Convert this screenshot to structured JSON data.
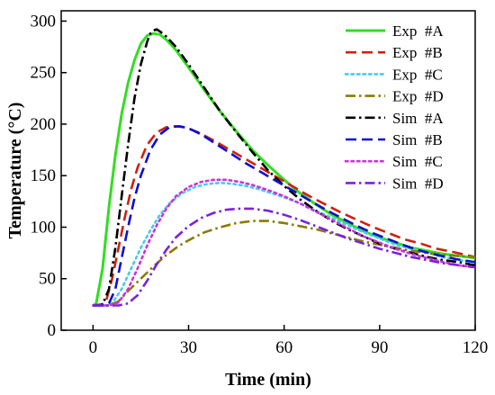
{
  "chart_data": {
    "type": "line",
    "title": "",
    "xlabel": "Time (min)",
    "ylabel": "Temperature (°C)",
    "xlim": [
      -10,
      120
    ],
    "ylim": [
      0,
      310
    ],
    "x_ticks": [
      0,
      30,
      60,
      90,
      120
    ],
    "y_ticks": [
      0,
      50,
      100,
      150,
      200,
      250,
      300
    ],
    "grid": false,
    "legend_position": "top-right",
    "series": [
      {
        "name": "Exp  #A",
        "color": "#33dd22",
        "style": "solid",
        "points": [
          [
            0,
            24
          ],
          [
            1,
            26
          ],
          [
            3,
            60
          ],
          [
            5,
            120
          ],
          [
            7,
            170
          ],
          [
            9,
            210
          ],
          [
            11,
            240
          ],
          [
            13,
            262
          ],
          [
            15,
            278
          ],
          [
            17,
            286
          ],
          [
            19,
            288
          ],
          [
            21,
            287
          ],
          [
            23,
            282
          ],
          [
            26,
            272
          ],
          [
            30,
            255
          ],
          [
            35,
            233
          ],
          [
            40,
            212
          ],
          [
            45,
            193
          ],
          [
            50,
            175
          ],
          [
            55,
            160
          ],
          [
            60,
            146
          ],
          [
            65,
            133
          ],
          [
            70,
            122
          ],
          [
            75,
            112
          ],
          [
            80,
            104
          ],
          [
            85,
            96
          ],
          [
            90,
            90
          ],
          [
            95,
            85
          ],
          [
            100,
            80
          ],
          [
            105,
            77
          ],
          [
            110,
            74
          ],
          [
            115,
            72
          ],
          [
            120,
            70
          ]
        ]
      },
      {
        "name": "Exp  #B",
        "color": "#cc2211",
        "style": "dashed",
        "points": [
          [
            0,
            24
          ],
          [
            2,
            24
          ],
          [
            4,
            27
          ],
          [
            6,
            50
          ],
          [
            8,
            80
          ],
          [
            10,
            110
          ],
          [
            12,
            137
          ],
          [
            14,
            158
          ],
          [
            17,
            180
          ],
          [
            20,
            192
          ],
          [
            23,
            197
          ],
          [
            26,
            198
          ],
          [
            29,
            197
          ],
          [
            33,
            192
          ],
          [
            38,
            184
          ],
          [
            43,
            175
          ],
          [
            48,
            166
          ],
          [
            53,
            157
          ],
          [
            58,
            148
          ],
          [
            63,
            139
          ],
          [
            68,
            130
          ],
          [
            73,
            122
          ],
          [
            78,
            114
          ],
          [
            83,
            107
          ],
          [
            88,
            100
          ],
          [
            93,
            94
          ],
          [
            98,
            88
          ],
          [
            103,
            84
          ],
          [
            108,
            79
          ],
          [
            113,
            76
          ],
          [
            120,
            71
          ]
        ]
      },
      {
        "name": "Exp  #C",
        "color": "#44ccee",
        "style": "dotted",
        "points": [
          [
            0,
            24
          ],
          [
            4,
            24
          ],
          [
            6,
            26
          ],
          [
            9,
            40
          ],
          [
            12,
            60
          ],
          [
            15,
            80
          ],
          [
            18,
            97
          ],
          [
            21,
            112
          ],
          [
            24,
            123
          ],
          [
            28,
            133
          ],
          [
            32,
            139
          ],
          [
            36,
            142
          ],
          [
            40,
            143
          ],
          [
            44,
            142
          ],
          [
            48,
            140
          ],
          [
            52,
            137
          ],
          [
            56,
            133
          ],
          [
            60,
            129
          ],
          [
            65,
            123
          ],
          [
            70,
            116
          ],
          [
            75,
            109
          ],
          [
            80,
            102
          ],
          [
            85,
            95
          ],
          [
            90,
            89
          ],
          [
            95,
            83
          ],
          [
            100,
            79
          ],
          [
            105,
            75
          ],
          [
            110,
            71
          ],
          [
            115,
            68
          ],
          [
            120,
            66
          ]
        ]
      },
      {
        "name": "Exp  #D",
        "color": "#8b7a00",
        "style": "dashdot",
        "points": [
          [
            0,
            24
          ],
          [
            5,
            24
          ],
          [
            8,
            28
          ],
          [
            11,
            38
          ],
          [
            15,
            50
          ],
          [
            19,
            62
          ],
          [
            23,
            73
          ],
          [
            27,
            82
          ],
          [
            31,
            89
          ],
          [
            35,
            95
          ],
          [
            40,
            100
          ],
          [
            45,
            104
          ],
          [
            50,
            106
          ],
          [
            55,
            106
          ],
          [
            60,
            104
          ],
          [
            65,
            101
          ],
          [
            70,
            98
          ],
          [
            75,
            94
          ],
          [
            80,
            90
          ],
          [
            85,
            86
          ],
          [
            90,
            83
          ],
          [
            95,
            80
          ],
          [
            100,
            77
          ],
          [
            105,
            75
          ],
          [
            110,
            73
          ],
          [
            115,
            72
          ],
          [
            120,
            71
          ]
        ]
      },
      {
        "name": "Sim  #A",
        "color": "#000000",
        "style": "dashdot",
        "points": [
          [
            0,
            24
          ],
          [
            3,
            25
          ],
          [
            5,
            40
          ],
          [
            7,
            80
          ],
          [
            9,
            130
          ],
          [
            11,
            180
          ],
          [
            13,
            225
          ],
          [
            15,
            258
          ],
          [
            17,
            280
          ],
          [
            18,
            288
          ],
          [
            19,
            291
          ],
          [
            20,
            292
          ],
          [
            21,
            290
          ],
          [
            23,
            285
          ],
          [
            26,
            275
          ],
          [
            30,
            258
          ],
          [
            35,
            235
          ],
          [
            40,
            212
          ],
          [
            45,
            192
          ],
          [
            50,
            173
          ],
          [
            55,
            155
          ],
          [
            60,
            140
          ],
          [
            65,
            127
          ],
          [
            70,
            116
          ],
          [
            75,
            106
          ],
          [
            80,
            98
          ],
          [
            85,
            91
          ],
          [
            90,
            84
          ],
          [
            95,
            79
          ],
          [
            100,
            75
          ],
          [
            105,
            71
          ],
          [
            110,
            68
          ],
          [
            115,
            66
          ],
          [
            120,
            63
          ]
        ]
      },
      {
        "name": "Sim  #B",
        "color": "#0a10d0",
        "style": "dashed",
        "points": [
          [
            0,
            24
          ],
          [
            3,
            24
          ],
          [
            5,
            26
          ],
          [
            7,
            40
          ],
          [
            9,
            70
          ],
          [
            11,
            100
          ],
          [
            13,
            128
          ],
          [
            15,
            150
          ],
          [
            18,
            175
          ],
          [
            21,
            190
          ],
          [
            24,
            197
          ],
          [
            27,
            198
          ],
          [
            30,
            196
          ],
          [
            34,
            190
          ],
          [
            38,
            182
          ],
          [
            43,
            172
          ],
          [
            48,
            162
          ],
          [
            53,
            153
          ],
          [
            58,
            144
          ],
          [
            63,
            135
          ],
          [
            68,
            126
          ],
          [
            73,
            117
          ],
          [
            78,
            109
          ],
          [
            83,
            101
          ],
          [
            88,
            94
          ],
          [
            93,
            88
          ],
          [
            98,
            82
          ],
          [
            103,
            77
          ],
          [
            108,
            73
          ],
          [
            114,
            69
          ],
          [
            120,
            66
          ]
        ]
      },
      {
        "name": "Sim  #C",
        "color": "#cc33dd",
        "style": "dotted",
        "points": [
          [
            0,
            24
          ],
          [
            5,
            24
          ],
          [
            8,
            27
          ],
          [
            11,
            40
          ],
          [
            14,
            60
          ],
          [
            17,
            82
          ],
          [
            20,
            102
          ],
          [
            23,
            118
          ],
          [
            26,
            130
          ],
          [
            30,
            139
          ],
          [
            34,
            144
          ],
          [
            38,
            146
          ],
          [
            42,
            146
          ],
          [
            46,
            144
          ],
          [
            50,
            141
          ],
          [
            55,
            136
          ],
          [
            60,
            130
          ],
          [
            65,
            123
          ],
          [
            70,
            115
          ],
          [
            75,
            107
          ],
          [
            80,
            99
          ],
          [
            85,
            91
          ],
          [
            90,
            85
          ],
          [
            95,
            79
          ],
          [
            100,
            74
          ],
          [
            105,
            70
          ],
          [
            110,
            66
          ],
          [
            115,
            63
          ],
          [
            120,
            61
          ]
        ]
      },
      {
        "name": "Sim  #D",
        "color": "#7a22dd",
        "style": "dashdot",
        "points": [
          [
            0,
            24
          ],
          [
            5,
            24
          ],
          [
            8,
            24
          ],
          [
            11,
            26
          ],
          [
            14,
            34
          ],
          [
            17,
            48
          ],
          [
            20,
            64
          ],
          [
            23,
            78
          ],
          [
            26,
            90
          ],
          [
            30,
            101
          ],
          [
            34,
            109
          ],
          [
            38,
            114
          ],
          [
            42,
            117
          ],
          [
            46,
            118
          ],
          [
            50,
            118
          ],
          [
            55,
            116
          ],
          [
            60,
            112
          ],
          [
            65,
            107
          ],
          [
            70,
            101
          ],
          [
            75,
            95
          ],
          [
            80,
            89
          ],
          [
            85,
            84
          ],
          [
            90,
            79
          ],
          [
            95,
            75
          ],
          [
            100,
            71
          ],
          [
            105,
            68
          ],
          [
            110,
            65
          ],
          [
            115,
            63
          ],
          [
            120,
            61
          ]
        ]
      }
    ]
  }
}
